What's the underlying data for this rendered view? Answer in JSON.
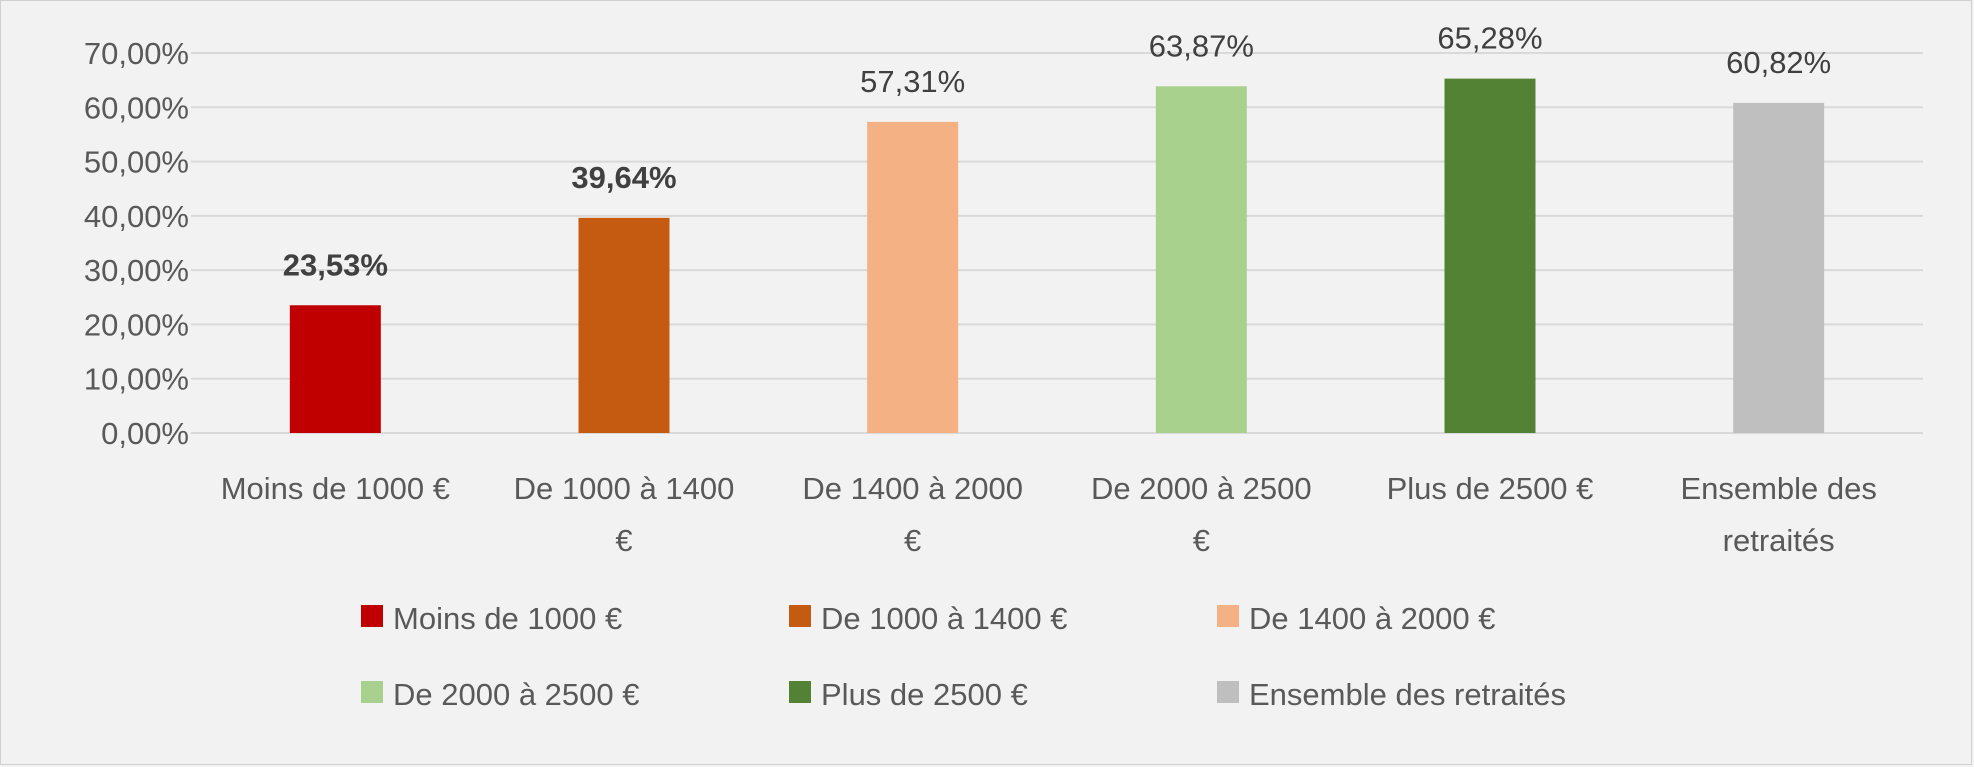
{
  "chart_data": {
    "type": "bar",
    "categories": [
      "Moins de 1000 €",
      "De 1000 à 1400 €",
      "De 1400 à 2000 €",
      "De 2000 à 2500 €",
      "Plus de 2500 €",
      "Ensemble des retraités"
    ],
    "category_lines": [
      [
        "Moins de 1000 €"
      ],
      [
        "De 1000 à 1400",
        "€"
      ],
      [
        "De 1400 à 2000",
        "€"
      ],
      [
        "De 2000 à 2500",
        "€"
      ],
      [
        "Plus de 2500 €"
      ],
      [
        "Ensemble des",
        "retraités"
      ]
    ],
    "values": [
      23.53,
      39.64,
      57.31,
      63.87,
      65.28,
      60.82
    ],
    "data_labels": [
      "23,53%",
      "39,64%",
      "57,31%",
      "63,87%",
      "65,28%",
      "60,82%"
    ],
    "bold_labels": [
      true,
      true,
      false,
      false,
      false,
      false
    ],
    "colors": [
      "#c00000",
      "#c55a11",
      "#f4b183",
      "#a9d18e",
      "#548235",
      "#bfbfbf"
    ],
    "ylim": [
      0,
      70
    ],
    "yticks": [
      0,
      10,
      20,
      30,
      40,
      50,
      60,
      70
    ],
    "ytick_labels": [
      "0,00%",
      "10,00%",
      "20,00%",
      "30,00%",
      "40,00%",
      "50,00%",
      "60,00%",
      "70,00%"
    ],
    "grid": true,
    "legend_position": "bottom",
    "legend": [
      "Moins de 1000 €",
      "De 1000 à 1400 €",
      "De 1400 à 2000 €",
      "De 2000 à 2500 €",
      "Plus de 2500 €",
      "Ensemble des retraités"
    ],
    "title": "",
    "xlabel": "",
    "ylabel": ""
  }
}
